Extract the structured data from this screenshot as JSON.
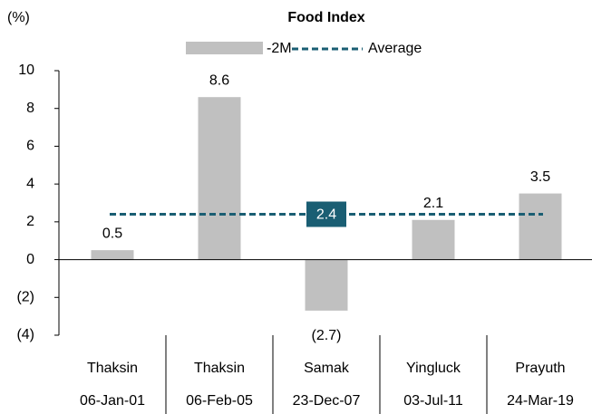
{
  "chart_data": {
    "type": "bar",
    "title": "Food Index",
    "ylabel": "(%)",
    "categories": [
      "Thaksin",
      "Thaksin",
      "Samak",
      "Yingluck",
      "Prayuth"
    ],
    "dates": [
      "06-Jan-01",
      "06-Feb-05",
      "23-Dec-07",
      "03-Jul-11",
      "24-Mar-19"
    ],
    "series": [
      {
        "name": "-2M",
        "color": "#c0c0c0",
        "values": [
          0.5,
          8.6,
          -2.7,
          2.1,
          3.5
        ],
        "value_labels": [
          "0.5",
          "8.6",
          "(2.7)",
          "2.1",
          "3.5"
        ]
      }
    ],
    "average": {
      "name": "Average",
      "value": 2.4,
      "color": "#1a5e73"
    },
    "ylim": [
      -4,
      10
    ],
    "yticks": [
      {
        "value": -4,
        "label": "(4)"
      },
      {
        "value": -2,
        "label": "(2)"
      },
      0,
      2,
      4,
      6,
      8,
      10
    ],
    "legend": "top"
  }
}
